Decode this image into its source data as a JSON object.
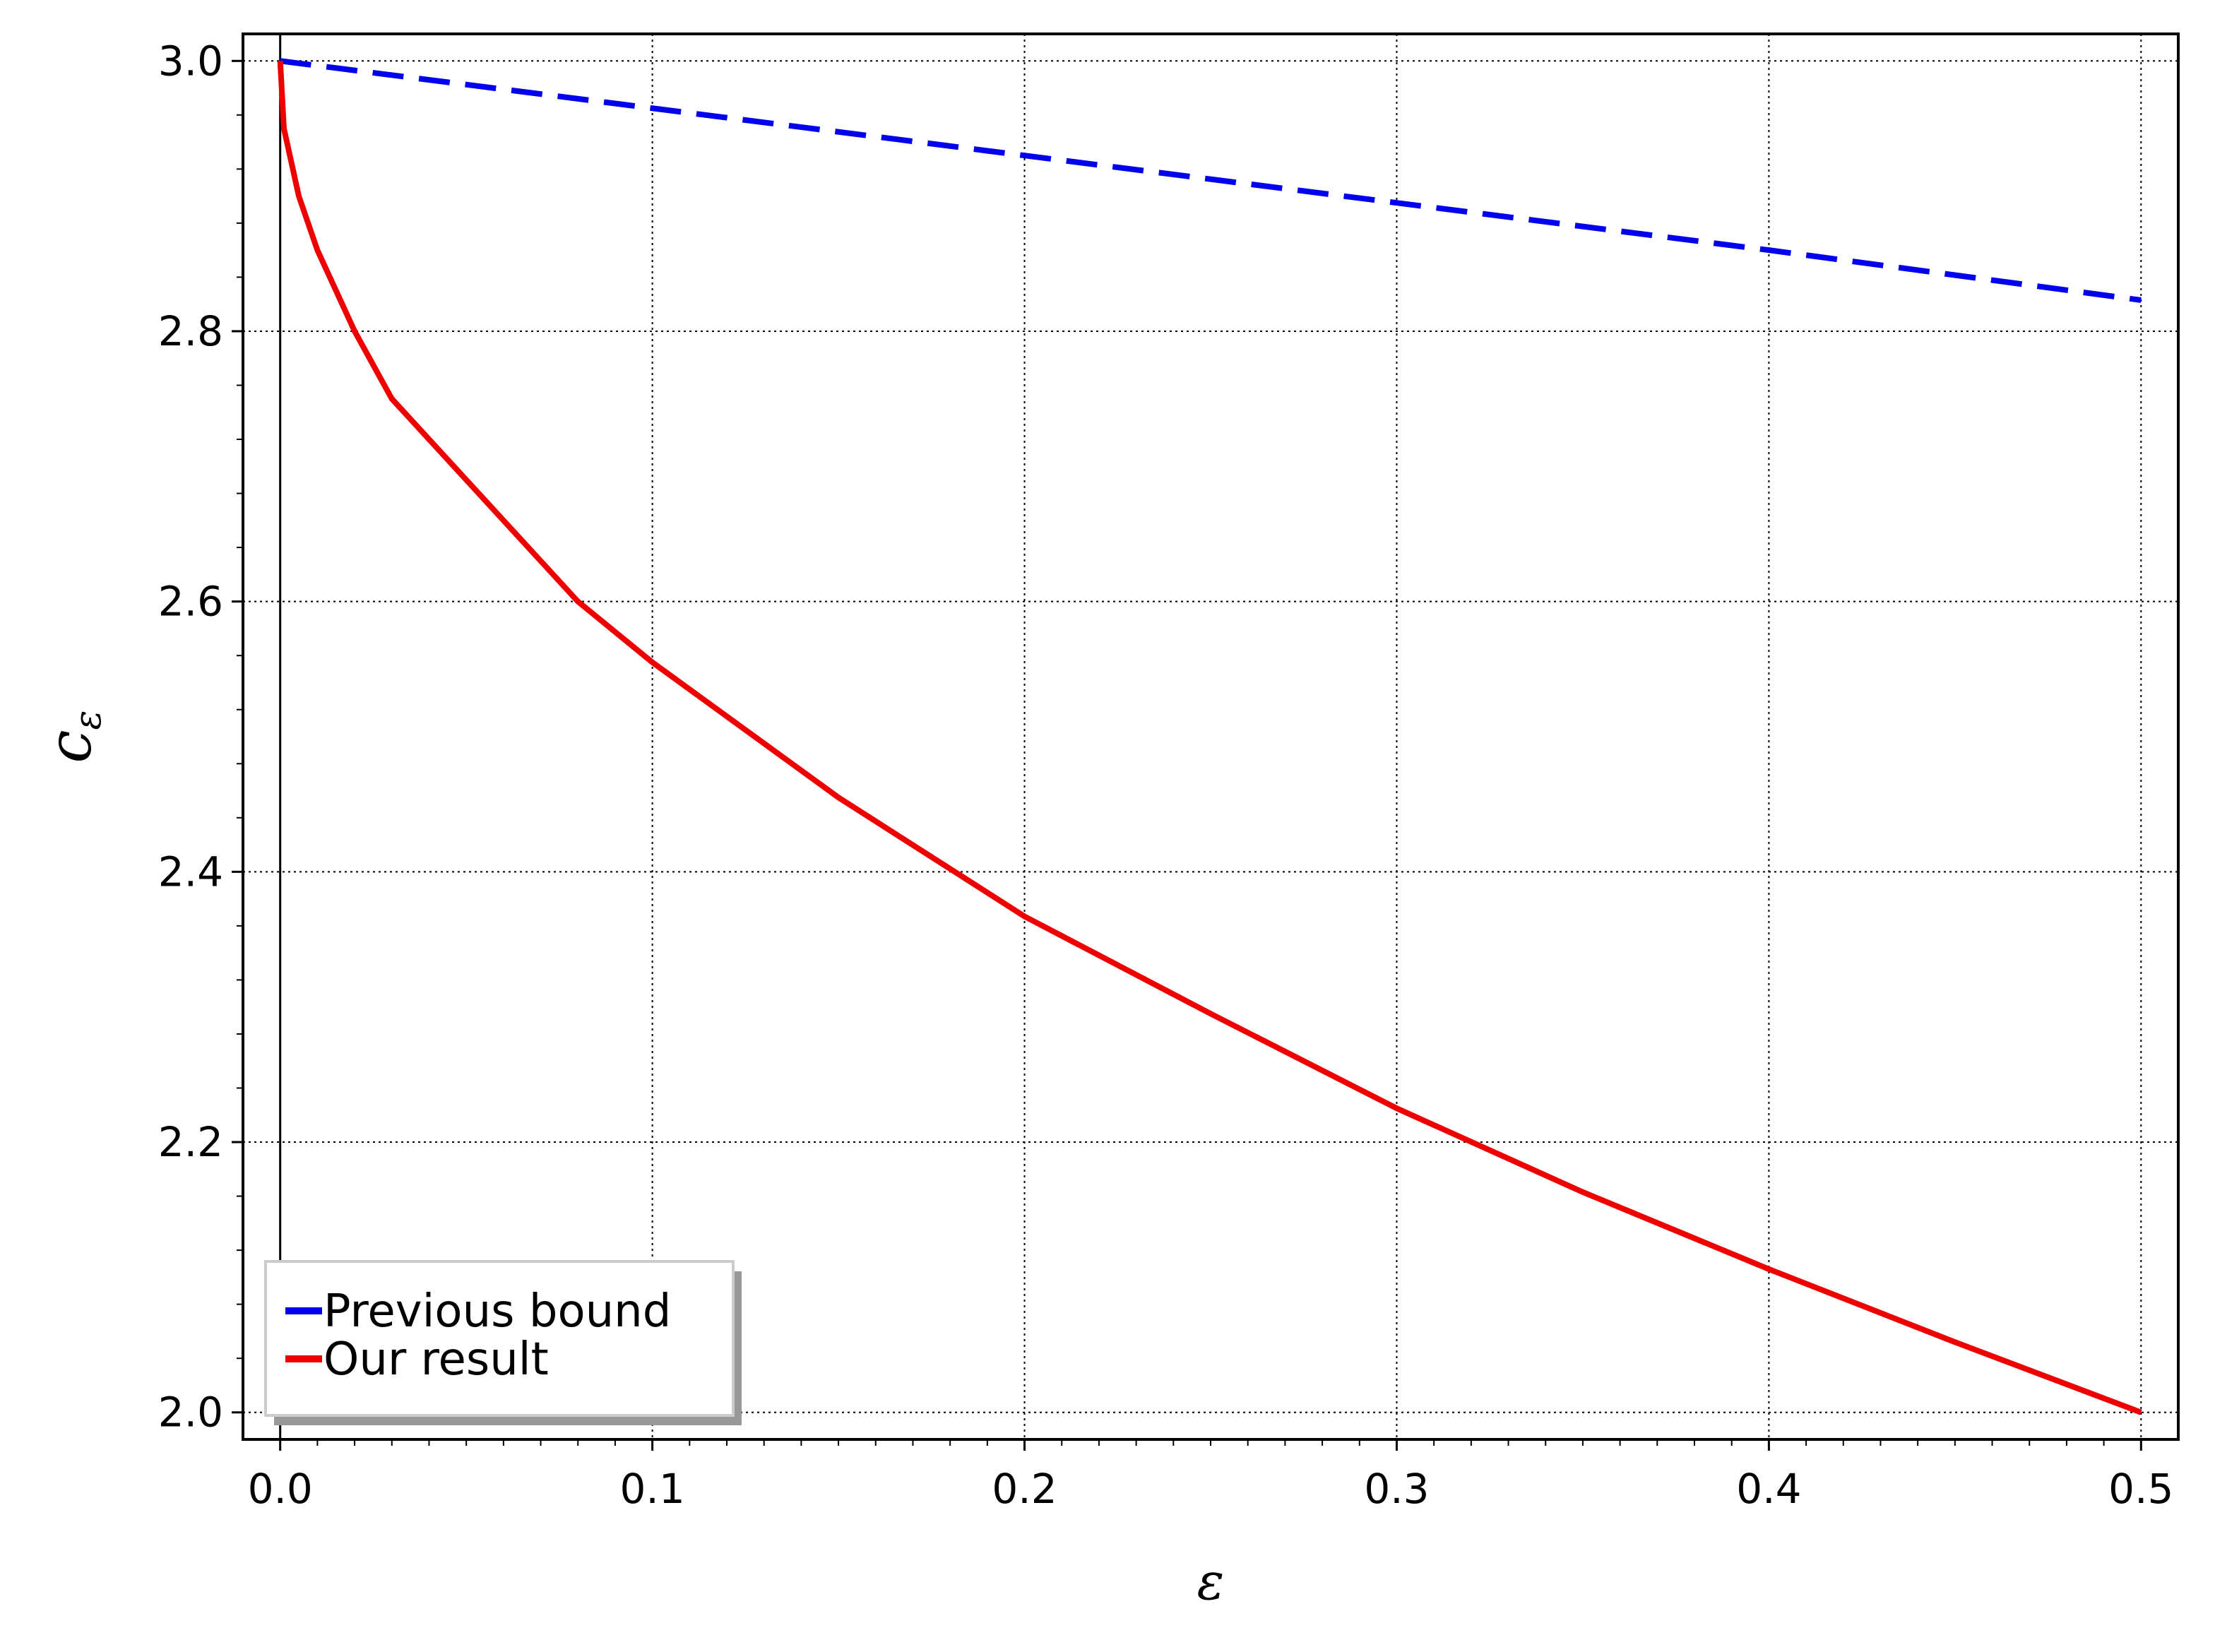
{
  "chart_data": {
    "type": "line",
    "xlabel": "ε",
    "ylabel_main": "c",
    "ylabel_sub": "ε",
    "xlim": [
      -0.01,
      0.51
    ],
    "ylim": [
      1.98,
      3.02
    ],
    "x_ticks": [
      0.0,
      0.1,
      0.2,
      0.3,
      0.4,
      0.5
    ],
    "x_tick_labels": [
      "0.0",
      "0.1",
      "0.2",
      "0.3",
      "0.4",
      "0.5"
    ],
    "y_ticks": [
      2.0,
      2.2,
      2.4,
      2.6,
      2.8,
      3.0
    ],
    "y_tick_labels": [
      "2.0",
      "2.2",
      "2.4",
      "2.6",
      "2.8",
      "3.0"
    ],
    "grid": true,
    "legend_position": "lower-left",
    "series": [
      {
        "name": "Previous bound",
        "color": "#0000ee",
        "style": "dashed",
        "x": [
          0.0,
          0.1,
          0.2,
          0.3,
          0.4,
          0.5
        ],
        "y": [
          3.0,
          2.965,
          2.93,
          2.895,
          2.86,
          2.823
        ]
      },
      {
        "name": "Our result",
        "color": "#ee0000",
        "style": "solid",
        "x": [
          0.0,
          0.001,
          0.005,
          0.01,
          0.02,
          0.03,
          0.05,
          0.08,
          0.1,
          0.15,
          0.2,
          0.25,
          0.3,
          0.35,
          0.4,
          0.45,
          0.5
        ],
        "y": [
          3.0,
          2.95,
          2.9,
          2.86,
          2.8,
          2.75,
          2.69,
          2.6,
          2.555,
          2.455,
          2.367,
          2.295,
          2.225,
          2.163,
          2.106,
          2.052,
          2.0
        ]
      }
    ]
  }
}
